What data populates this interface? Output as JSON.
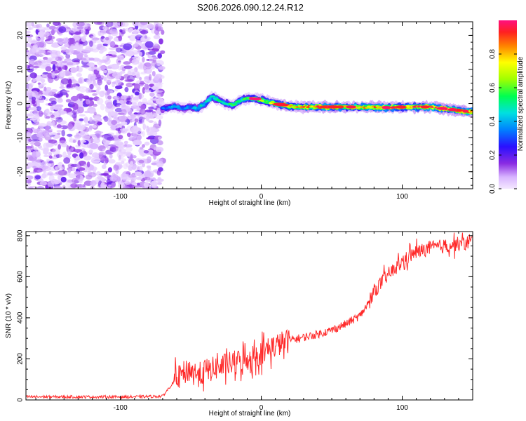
{
  "figure_title": "S206.2026.090.12.24.R12",
  "chart_data": [
    {
      "type": "heatmap",
      "panel": "spectrogram",
      "xlabel": "Height of straight line (km)",
      "ylabel": "Frequency (Hz)",
      "xlim": [
        -167,
        150
      ],
      "ylim": [
        -25,
        24
      ],
      "xticks": [
        -100,
        0,
        100
      ],
      "yticks": [
        -20,
        -10,
        0,
        10,
        20
      ],
      "colorbar": {
        "label": "Normalized spectral amplitude",
        "range": [
          0.0,
          1.0
        ],
        "ticks": [
          0.0,
          0.2,
          0.4,
          0.6,
          0.8
        ]
      },
      "noise_region_x": [
        -167,
        -70
      ],
      "ridge_x": [
        -70,
        -62,
        -55,
        -50,
        -45,
        -40,
        -35,
        -30,
        -25,
        -20,
        -15,
        -10,
        -5,
        0,
        5,
        10,
        20,
        30,
        40,
        50,
        60,
        70,
        80,
        90,
        100,
        110,
        120,
        130,
        140,
        150
      ],
      "ridge_freq": [
        -1.5,
        -0.8,
        -1.5,
        -1.0,
        -1.5,
        0.0,
        2.0,
        1.0,
        0.0,
        -0.5,
        1.0,
        1.5,
        1.5,
        1.0,
        0.5,
        0.0,
        -0.8,
        -1.0,
        -1.0,
        -1.0,
        -1.0,
        -1.0,
        -1.0,
        -1.2,
        -1.0,
        -1.0,
        -1.0,
        -1.5,
        -2.0,
        -2.5
      ],
      "ridge_amplitude": [
        0.35,
        0.4,
        0.35,
        0.4,
        0.45,
        0.5,
        0.55,
        0.5,
        0.5,
        0.55,
        0.6,
        0.6,
        0.65,
        0.7,
        0.7,
        0.75,
        0.8,
        0.85,
        0.9,
        0.9,
        0.85,
        0.8,
        0.85,
        0.9,
        0.85,
        0.9,
        0.95,
        0.9,
        0.9,
        0.95
      ]
    },
    {
      "type": "line",
      "panel": "snr",
      "xlabel": "Height of straight line (km)",
      "ylabel": "SNR (10 * v/v)",
      "xlim": [
        -167,
        150
      ],
      "ylim": [
        0,
        820
      ],
      "xticks": [
        -100,
        0,
        100
      ],
      "yticks": [
        0,
        200,
        400,
        600,
        800
      ],
      "color": "#ff2a2a",
      "series": [
        {
          "name": "SNR",
          "x": [
            -167,
            -150,
            -130,
            -110,
            -90,
            -70,
            -62,
            -55,
            -50,
            -45,
            -40,
            -30,
            -20,
            -10,
            0,
            10,
            20,
            30,
            40,
            50,
            60,
            70,
            75,
            80,
            85,
            90,
            95,
            100,
            105,
            110,
            120,
            130,
            140,
            150
          ],
          "values": [
            15,
            15,
            15,
            15,
            15,
            18,
            90,
            130,
            150,
            120,
            140,
            160,
            180,
            200,
            230,
            265,
            290,
            305,
            320,
            340,
            370,
            410,
            460,
            530,
            570,
            610,
            640,
            670,
            700,
            720,
            740,
            750,
            760,
            770
          ]
        }
      ]
    }
  ]
}
